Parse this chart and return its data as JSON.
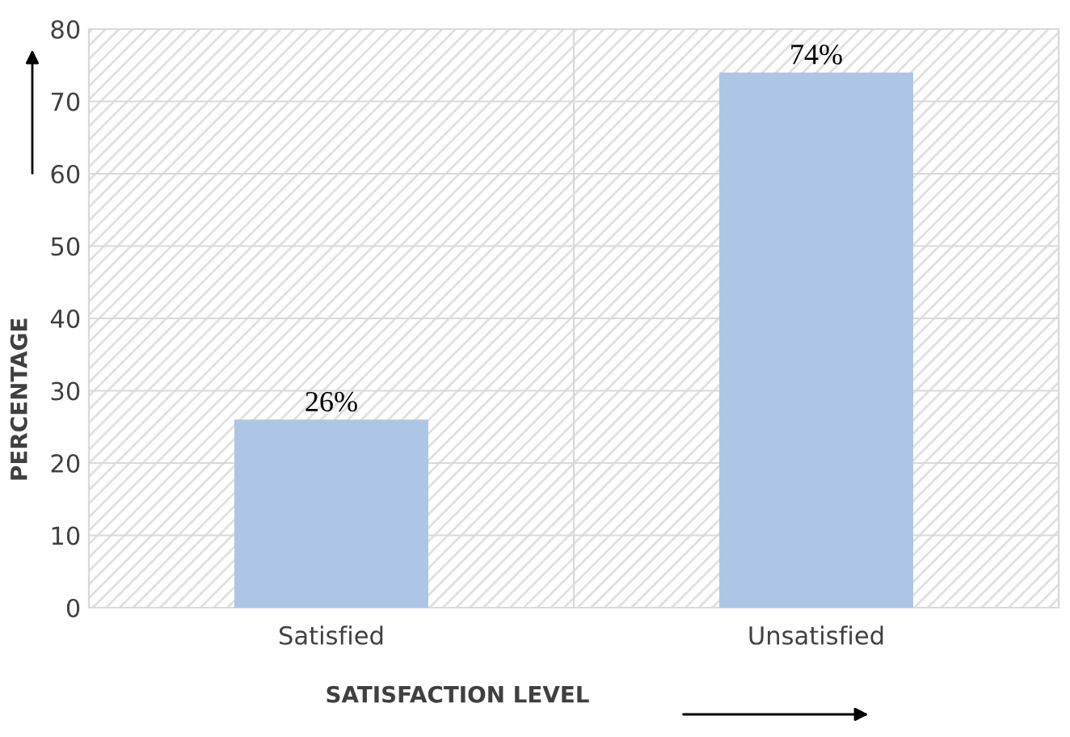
{
  "chart_data": {
    "type": "bar",
    "xlabel": "SATISFACTION LEVEL",
    "ylabel": "PERCENTAGE",
    "categories": [
      "Satisfied",
      "Unsatisfied"
    ],
    "values": [
      26,
      74
    ],
    "color": "#adc6e5",
    "value_labels": [
      "26%",
      "74%"
    ],
    "ylim": [
      0,
      80
    ],
    "yticks": [
      0,
      10,
      20,
      30,
      40,
      50,
      60,
      70,
      80
    ],
    "grid": "y"
  }
}
